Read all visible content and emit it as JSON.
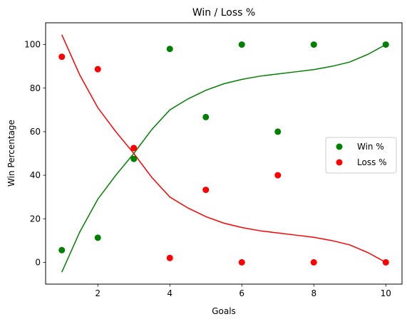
{
  "chart_data": {
    "type": "scatter",
    "title": "Win / Loss %",
    "xlabel": "Goals",
    "ylabel": "Win Percentage",
    "xlim": [
      0.55,
      10.45
    ],
    "ylim": [
      -10,
      110
    ],
    "xticks": [
      2,
      4,
      6,
      8,
      10
    ],
    "yticks": [
      0,
      20,
      40,
      60,
      80,
      100
    ],
    "legend_position": "center-right",
    "series": [
      {
        "name": "Win %",
        "color": "#008000",
        "points": [
          {
            "x": 1,
            "y": 5.6
          },
          {
            "x": 2,
            "y": 11.3
          },
          {
            "x": 3,
            "y": 47.5
          },
          {
            "x": 4,
            "y": 98.0
          },
          {
            "x": 5,
            "y": 66.7
          },
          {
            "x": 6,
            "y": 100
          },
          {
            "x": 7,
            "y": 60.0
          },
          {
            "x": 8,
            "y": 100
          },
          {
            "x": 10,
            "y": 100
          }
        ],
        "fit_curve": [
          {
            "x": 1,
            "y": -4.5
          },
          {
            "x": 1.5,
            "y": 14
          },
          {
            "x": 2,
            "y": 29
          },
          {
            "x": 2.5,
            "y": 40
          },
          {
            "x": 3,
            "y": 50
          },
          {
            "x": 3.5,
            "y": 61
          },
          {
            "x": 4,
            "y": 70
          },
          {
            "x": 4.5,
            "y": 75
          },
          {
            "x": 5,
            "y": 79
          },
          {
            "x": 5.5,
            "y": 82
          },
          {
            "x": 6,
            "y": 84
          },
          {
            "x": 6.5,
            "y": 85.5
          },
          {
            "x": 7,
            "y": 86.5
          },
          {
            "x": 7.5,
            "y": 87.5
          },
          {
            "x": 8,
            "y": 88.5
          },
          {
            "x": 8.5,
            "y": 90
          },
          {
            "x": 9,
            "y": 92
          },
          {
            "x": 9.5,
            "y": 95.5
          },
          {
            "x": 10,
            "y": 100
          }
        ]
      },
      {
        "name": "Loss %",
        "color": "#ff0000",
        "points": [
          {
            "x": 1,
            "y": 94.4
          },
          {
            "x": 2,
            "y": 88.7
          },
          {
            "x": 3,
            "y": 52.5
          },
          {
            "x": 4,
            "y": 2.0
          },
          {
            "x": 5,
            "y": 33.3
          },
          {
            "x": 6,
            "y": 0
          },
          {
            "x": 7,
            "y": 40.0
          },
          {
            "x": 8,
            "y": 0
          },
          {
            "x": 10,
            "y": 0
          }
        ],
        "fit_curve": [
          {
            "x": 1,
            "y": 104.5
          },
          {
            "x": 1.5,
            "y": 86
          },
          {
            "x": 2,
            "y": 71
          },
          {
            "x": 2.5,
            "y": 60
          },
          {
            "x": 3,
            "y": 50
          },
          {
            "x": 3.5,
            "y": 39
          },
          {
            "x": 4,
            "y": 30
          },
          {
            "x": 4.5,
            "y": 25
          },
          {
            "x": 5,
            "y": 21
          },
          {
            "x": 5.5,
            "y": 18
          },
          {
            "x": 6,
            "y": 16
          },
          {
            "x": 6.5,
            "y": 14.5
          },
          {
            "x": 7,
            "y": 13.5
          },
          {
            "x": 7.5,
            "y": 12.5
          },
          {
            "x": 8,
            "y": 11.5
          },
          {
            "x": 8.5,
            "y": 10
          },
          {
            "x": 9,
            "y": 8
          },
          {
            "x": 9.5,
            "y": 4.5
          },
          {
            "x": 10,
            "y": 0
          }
        ]
      }
    ]
  }
}
